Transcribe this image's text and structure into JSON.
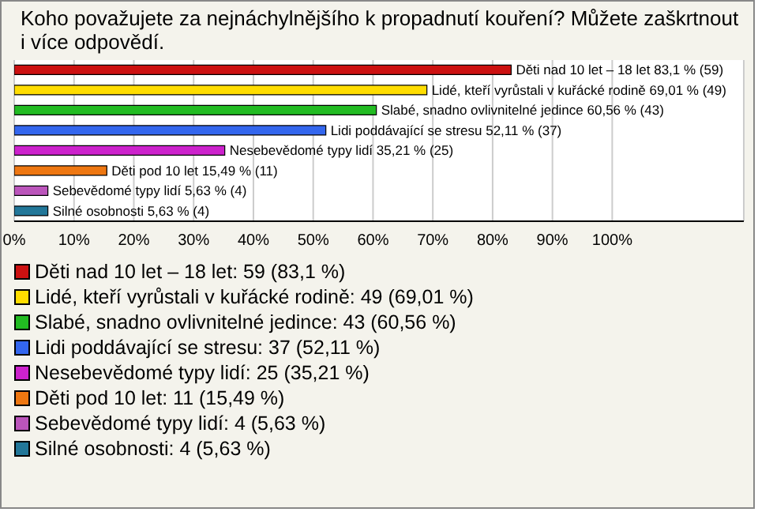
{
  "chart_data": {
    "type": "bar",
    "orientation": "horizontal",
    "title": "Koho považujete za nejnáchylnějšího k propadnutí kouření? Můžete zaškrtnout i více odpovědí.",
    "categories": [
      "Děti nad 10 let – 18 let",
      "Lidé, kteří vyrůstali v kuřácké rodině",
      "Slabé, snadno ovlivnitelné jedince",
      "Lidi poddávající se stresu",
      "Nesebevědomé typy lidí",
      "Děti pod 10 let",
      "Sebevědomé typy lidí",
      "Silné osobnosti"
    ],
    "values": [
      83.1,
      69.01,
      60.56,
      52.11,
      35.21,
      15.49,
      5.63,
      5.63
    ],
    "value_labels": [
      "83,1 % (59)",
      "69,01 % (49)",
      "60,56 % (43)",
      "52,11 % (37)",
      "35,21 % (25)",
      "15,49 % (11)",
      "5,63 % (4)",
      "5,63 % (4)"
    ],
    "colors": [
      "#cc1111",
      "#ffdd00",
      "#22bb22",
      "#3366ee",
      "#cc22cc",
      "#ee7711",
      "#bb55bb",
      "#227799"
    ],
    "xlim": [
      0,
      122
    ],
    "xticks": [
      {
        "value": 0,
        "label": "0%"
      },
      {
        "value": 10,
        "label": "10%"
      },
      {
        "value": 20,
        "label": "20%"
      },
      {
        "value": 30,
        "label": "30%"
      },
      {
        "value": 40,
        "label": "40%"
      },
      {
        "value": 50,
        "label": "50%"
      },
      {
        "value": 60,
        "label": "60%"
      },
      {
        "value": 70,
        "label": "70%"
      },
      {
        "value": 80,
        "label": "80%"
      },
      {
        "value": 90,
        "label": "90%"
      },
      {
        "value": 100,
        "label": "100%"
      }
    ],
    "grid": "x",
    "annotations": [
      "Děti nad 10 let – 18 let: 59 (83,1 %)",
      "Lidé, kteří vyrůstali v kuřácké rodině: 49 (69,01 %)",
      "Slabé, snadno ovlivnitelné jedince: 43 (60,56 %)",
      "Lidi poddávající se stresu: 37 (52,11 %)",
      "Nesebevědomé typy lidí: 25 (35,21 %)",
      "Děti pod 10 let: 11 (15,49 %)",
      "Sebevědomé typy lidí: 4 (5,63 %)",
      "Silné osobnosti: 4 (5,63 %)"
    ]
  }
}
